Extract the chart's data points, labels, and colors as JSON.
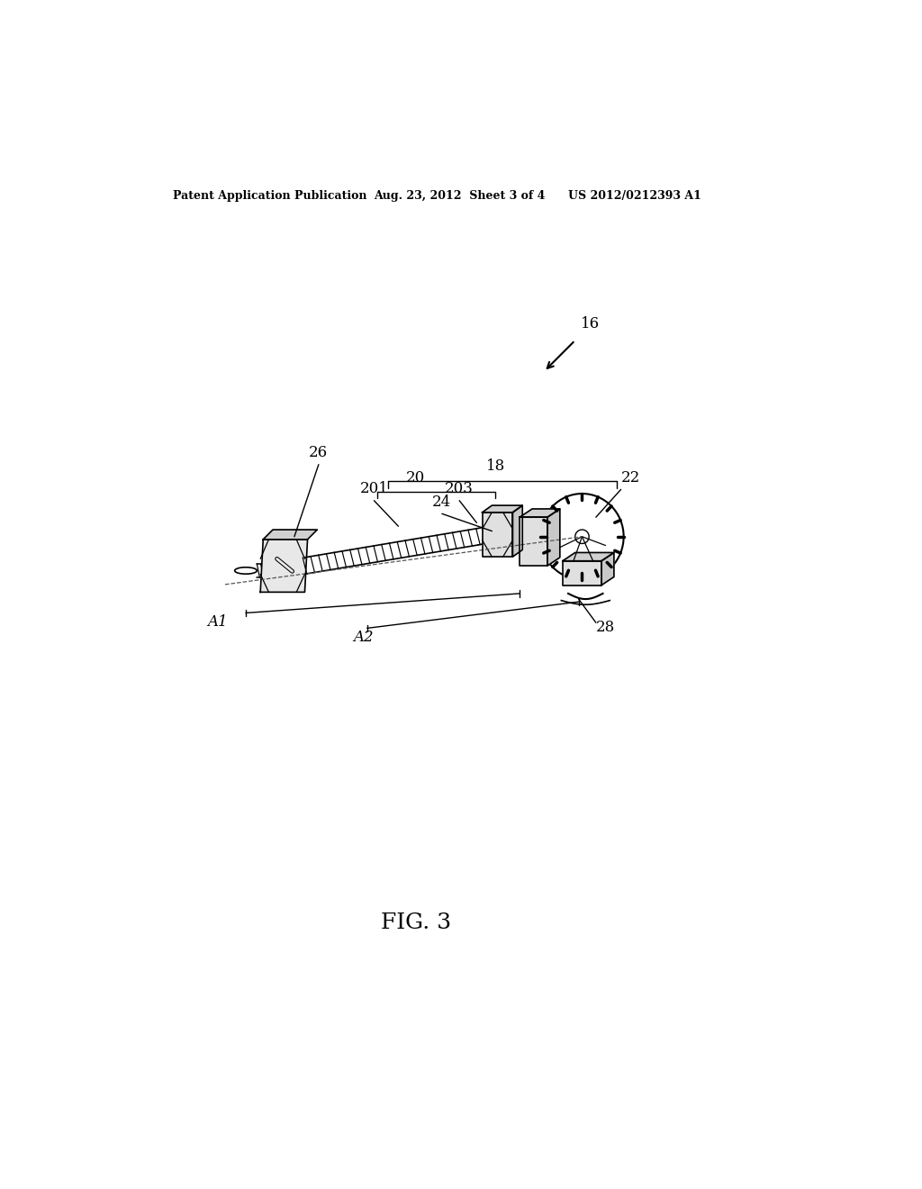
{
  "background_color": "#ffffff",
  "header_left": "Patent Application Publication",
  "header_center": "Aug. 23, 2012  Sheet 3 of 4",
  "header_right": "US 2012/0212393 A1",
  "figure_label": "FIG. 3",
  "header_fontsize": 9,
  "label_fontsize": 12,
  "fig_label_fontsize": 18
}
